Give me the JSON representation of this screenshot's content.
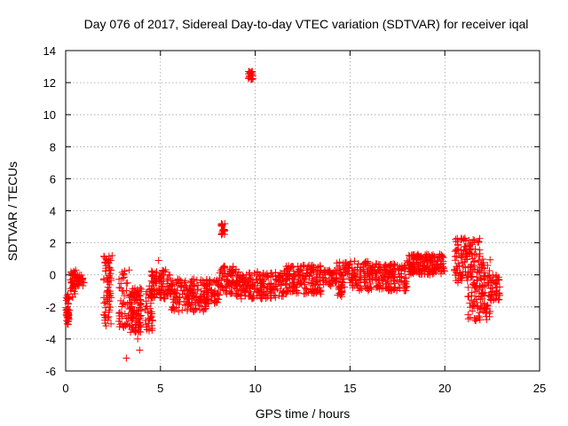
{
  "chart_data": {
    "type": "scatter",
    "title": "Day 076 of 2017, Sidereal Day-to-day VTEC variation (SDTVAR) for receiver iqal",
    "xlabel": "GPS time / hours",
    "ylabel": "SDTVAR / TECUs",
    "xlim": [
      0,
      25
    ],
    "ylim": [
      -6,
      14
    ],
    "xticks": [
      0,
      5,
      10,
      15,
      20,
      25
    ],
    "yticks": [
      -6,
      -4,
      -2,
      0,
      2,
      4,
      6,
      8,
      10,
      12,
      14
    ],
    "xtick_labels": [
      "0",
      "5",
      "10",
      "15",
      "20",
      "25"
    ],
    "ytick_labels": [
      "-6",
      "-4",
      "-2",
      "0",
      "2",
      "4",
      "6",
      "8",
      "10",
      "12",
      "14"
    ],
    "grid": true,
    "marker": "+",
    "marker_color": "#ff0000",
    "clusters": [
      {
        "x": [
          0.0,
          0.2
        ],
        "y": [
          -3.1,
          -1.2
        ],
        "n": 40
      },
      {
        "x": [
          0.25,
          0.6
        ],
        "y": [
          -1.4,
          0.3
        ],
        "n": 40
      },
      {
        "x": [
          0.6,
          1.0
        ],
        "y": [
          -0.7,
          0.0
        ],
        "n": 20
      },
      {
        "x": [
          2.0,
          2.4
        ],
        "y": [
          -3.2,
          1.2
        ],
        "n": 70
      },
      {
        "x": [
          2.8,
          3.3
        ],
        "y": [
          -3.4,
          0.3
        ],
        "n": 40
      },
      {
        "x": [
          3.3,
          4.0
        ],
        "y": [
          -3.6,
          -0.8
        ],
        "n": 110
      },
      {
        "x": [
          4.2,
          4.6
        ],
        "y": [
          -3.5,
          -0.6
        ],
        "n": 40
      },
      {
        "x": [
          4.5,
          5.5
        ],
        "y": [
          -1.5,
          0.4
        ],
        "n": 90
      },
      {
        "x": [
          5.5,
          7.5
        ],
        "y": [
          -2.3,
          -0.2
        ],
        "n": 170
      },
      {
        "x": [
          7.4,
          8.1
        ],
        "y": [
          -1.8,
          -0.3
        ],
        "n": 60
      },
      {
        "x": [
          8.0,
          9.0
        ],
        "y": [
          -1.2,
          0.7
        ],
        "n": 80
      },
      {
        "x": [
          8.2,
          8.4
        ],
        "y": [
          2.5,
          3.3
        ],
        "n": 22
      },
      {
        "x": [
          9.6,
          9.9
        ],
        "y": [
          12.2,
          12.7
        ],
        "n": 22
      },
      {
        "x": [
          9.0,
          11.5
        ],
        "y": [
          -1.5,
          0.2
        ],
        "n": 200
      },
      {
        "x": [
          11.5,
          13.5
        ],
        "y": [
          -1.2,
          0.6
        ],
        "n": 170
      },
      {
        "x": [
          13.5,
          14.3
        ],
        "y": [
          -0.7,
          0.3
        ],
        "n": 50
      },
      {
        "x": [
          14.3,
          14.6
        ],
        "y": [
          -1.5,
          1.1
        ],
        "n": 30
      },
      {
        "x": [
          14.6,
          16.0
        ],
        "y": [
          -1.0,
          0.9
        ],
        "n": 100
      },
      {
        "x": [
          16.0,
          18.0
        ],
        "y": [
          -1.0,
          0.7
        ],
        "n": 170
      },
      {
        "x": [
          18.0,
          20.0
        ],
        "y": [
          0.0,
          1.3
        ],
        "n": 170
      },
      {
        "x": [
          20.5,
          21.2
        ],
        "y": [
          -0.5,
          2.3
        ],
        "n": 70
      },
      {
        "x": [
          21.2,
          21.9
        ],
        "y": [
          -3.0,
          2.3
        ],
        "n": 100
      },
      {
        "x": [
          21.9,
          22.4
        ],
        "y": [
          -2.8,
          1.2
        ],
        "n": 60
      },
      {
        "x": [
          22.4,
          22.9
        ],
        "y": [
          -1.6,
          0.0
        ],
        "n": 40
      }
    ],
    "outliers": [
      {
        "x": 3.2,
        "y": -5.2
      },
      {
        "x": 3.35,
        "y": 0.3
      },
      {
        "x": 3.9,
        "y": -4.7
      },
      {
        "x": 3.8,
        "y": -4.0
      },
      {
        "x": 2.45,
        "y": 1.2
      },
      {
        "x": 4.9,
        "y": 0.9
      },
      {
        "x": 22.7,
        "y": -1.5
      },
      {
        "x": 4.4,
        "y": -3.5
      }
    ]
  }
}
